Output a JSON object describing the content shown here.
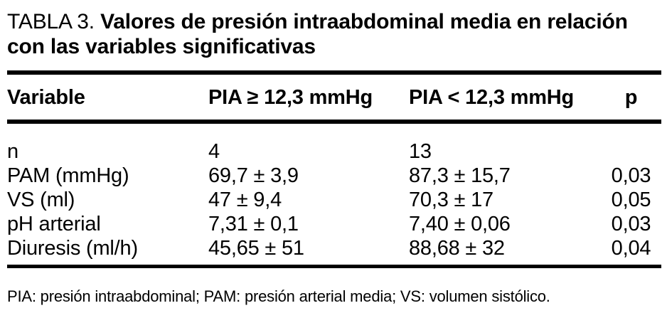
{
  "table": {
    "label": "TABLA 3.",
    "title_lines": [
      "Valores de presión intraabdominal media en relación",
      "con las variables significativas"
    ],
    "columns": {
      "variable": "Variable",
      "high": "PIA ≥ 12,3 mmHg",
      "low": "PIA < 12,3 mmHg",
      "p": "p"
    },
    "rows": [
      {
        "variable": "n",
        "high": "4",
        "low": "13",
        "p": ""
      },
      {
        "variable": "PAM (mmHg)",
        "high": "69,7 ± 3,9",
        "low": "87,3 ± 15,7",
        "p": "0,03"
      },
      {
        "variable": "VS (ml)",
        "high": "47 ± 9,4",
        "low": "70,3 ± 17",
        "p": "0,05"
      },
      {
        "variable": "pH arterial",
        "high": "7,31 ± 0,1",
        "low": "7,40 ± 0,06",
        "p": "0,03"
      },
      {
        "variable": "Diuresis (ml/h)",
        "high": "45,65 ± 51",
        "low": "88,68 ± 32",
        "p": "0,04"
      }
    ],
    "footnote": "PIA: presión intraabdominal; PAM: presión arterial media; VS: volumen sistólico.",
    "colors": {
      "text": "#000000",
      "background": "#ffffff",
      "rule": "#000000"
    }
  }
}
